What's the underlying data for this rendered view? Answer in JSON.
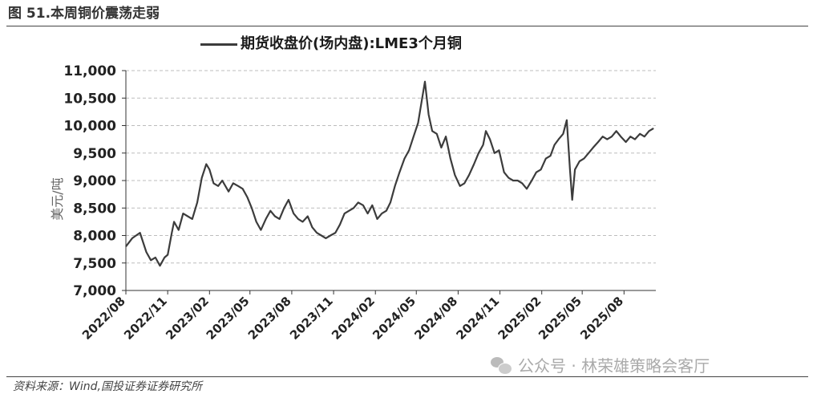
{
  "figure": {
    "title": "图 51.本周铜价震荡走弱",
    "source": "资料来源：Wind,国投证券证券研究所",
    "watermark": "公众号 · 林荣雄策略会客厅",
    "watermark_icon": "wechat-icon"
  },
  "chart_data": {
    "type": "line",
    "title": "",
    "ylabel": "美元/吨",
    "xlabel": "",
    "ylim": [
      7000,
      11000
    ],
    "yticks": [
      7000,
      7500,
      8000,
      8500,
      9000,
      9500,
      10000,
      10500,
      11000
    ],
    "ytick_labels": [
      "7,000",
      "7,500",
      "8,000",
      "8,500",
      "9,000",
      "9,500",
      "10,000",
      "10,500",
      "11,000"
    ],
    "xlim": [
      "2022-08-01",
      "2025-10-10"
    ],
    "xticks": [
      "2022-08-01",
      "2022-11-01",
      "2023-02-01",
      "2023-05-01",
      "2023-08-01",
      "2023-11-01",
      "2024-02-01",
      "2024-05-01",
      "2024-08-01",
      "2024-11-01",
      "2025-02-01",
      "2025-05-01",
      "2025-08-01"
    ],
    "xtick_labels": [
      "2022/08",
      "2022/11",
      "2023/02",
      "2023/05",
      "2023/08",
      "2023/11",
      "2024/02",
      "2024/05",
      "2024/08",
      "2024/11",
      "2025/02",
      "2025/05",
      "2025/08"
    ],
    "grid": "horizontal dashed",
    "legend": "top-center",
    "color": "#3c3c3c",
    "series": [
      {
        "name": "期货收盘价(场内盘):LME3个月铜",
        "x": [
          "2022-08-01",
          "2022-08-15",
          "2022-09-01",
          "2022-09-15",
          "2022-09-25",
          "2022-10-05",
          "2022-10-15",
          "2022-10-25",
          "2022-11-01",
          "2022-11-10",
          "2022-11-15",
          "2022-11-25",
          "2022-12-05",
          "2022-12-15",
          "2022-12-25",
          "2023-01-05",
          "2023-01-15",
          "2023-01-25",
          "2023-02-01",
          "2023-02-10",
          "2023-02-20",
          "2023-03-01",
          "2023-03-15",
          "2023-03-25",
          "2023-04-05",
          "2023-04-15",
          "2023-04-25",
          "2023-05-05",
          "2023-05-15",
          "2023-05-25",
          "2023-06-05",
          "2023-06-15",
          "2023-06-25",
          "2023-07-05",
          "2023-07-15",
          "2023-07-25",
          "2023-08-05",
          "2023-08-15",
          "2023-08-25",
          "2023-09-05",
          "2023-09-15",
          "2023-09-25",
          "2023-10-05",
          "2023-10-15",
          "2023-10-25",
          "2023-11-05",
          "2023-11-15",
          "2023-11-25",
          "2023-12-05",
          "2023-12-15",
          "2023-12-25",
          "2024-01-05",
          "2024-01-15",
          "2024-01-25",
          "2024-02-05",
          "2024-02-15",
          "2024-02-25",
          "2024-03-05",
          "2024-03-15",
          "2024-03-25",
          "2024-04-05",
          "2024-04-15",
          "2024-04-25",
          "2024-05-05",
          "2024-05-10",
          "2024-05-20",
          "2024-05-28",
          "2024-06-05",
          "2024-06-15",
          "2024-06-25",
          "2024-07-05",
          "2024-07-15",
          "2024-07-25",
          "2024-08-05",
          "2024-08-15",
          "2024-08-25",
          "2024-09-05",
          "2024-09-15",
          "2024-09-25",
          "2024-10-01",
          "2024-10-10",
          "2024-10-20",
          "2024-10-30",
          "2024-11-10",
          "2024-11-20",
          "2024-11-30",
          "2024-12-10",
          "2024-12-20",
          "2024-12-30",
          "2025-01-10",
          "2025-01-20",
          "2025-01-30",
          "2025-02-10",
          "2025-02-20",
          "2025-03-01",
          "2025-03-10",
          "2025-03-20",
          "2025-03-28",
          "2025-04-04",
          "2025-04-09",
          "2025-04-15",
          "2025-04-25",
          "2025-05-05",
          "2025-05-15",
          "2025-05-25",
          "2025-06-05",
          "2025-06-15",
          "2025-06-25",
          "2025-07-05",
          "2025-07-15",
          "2025-07-25",
          "2025-08-05",
          "2025-08-15",
          "2025-08-25",
          "2025-09-05",
          "2025-09-15",
          "2025-09-25",
          "2025-10-05"
        ],
        "y": [
          7800,
          7950,
          8050,
          7700,
          7550,
          7600,
          7450,
          7600,
          7650,
          8050,
          8250,
          8100,
          8400,
          8350,
          8300,
          8600,
          9050,
          9300,
          9200,
          8950,
          8900,
          9000,
          8800,
          8950,
          8900,
          8850,
          8700,
          8500,
          8250,
          8100,
          8300,
          8450,
          8350,
          8300,
          8500,
          8650,
          8400,
          8300,
          8250,
          8350,
          8150,
          8050,
          8000,
          7950,
          8000,
          8050,
          8200,
          8400,
          8450,
          8500,
          8600,
          8550,
          8400,
          8550,
          8300,
          8400,
          8450,
          8600,
          8900,
          9150,
          9400,
          9550,
          9800,
          10050,
          10300,
          10800,
          10200,
          9900,
          9850,
          9600,
          9800,
          9400,
          9100,
          8900,
          8950,
          9100,
          9300,
          9500,
          9650,
          9900,
          9750,
          9500,
          9550,
          9150,
          9050,
          9000,
          9000,
          8950,
          8850,
          9000,
          9150,
          9200,
          9400,
          9450,
          9650,
          9750,
          9850,
          10100,
          9200,
          8650,
          9200,
          9350,
          9400,
          9500,
          9600,
          9700,
          9800,
          9750,
          9800,
          9900,
          9800,
          9700,
          9800,
          9750,
          9850,
          9800,
          9900,
          9950
        ]
      }
    ]
  }
}
